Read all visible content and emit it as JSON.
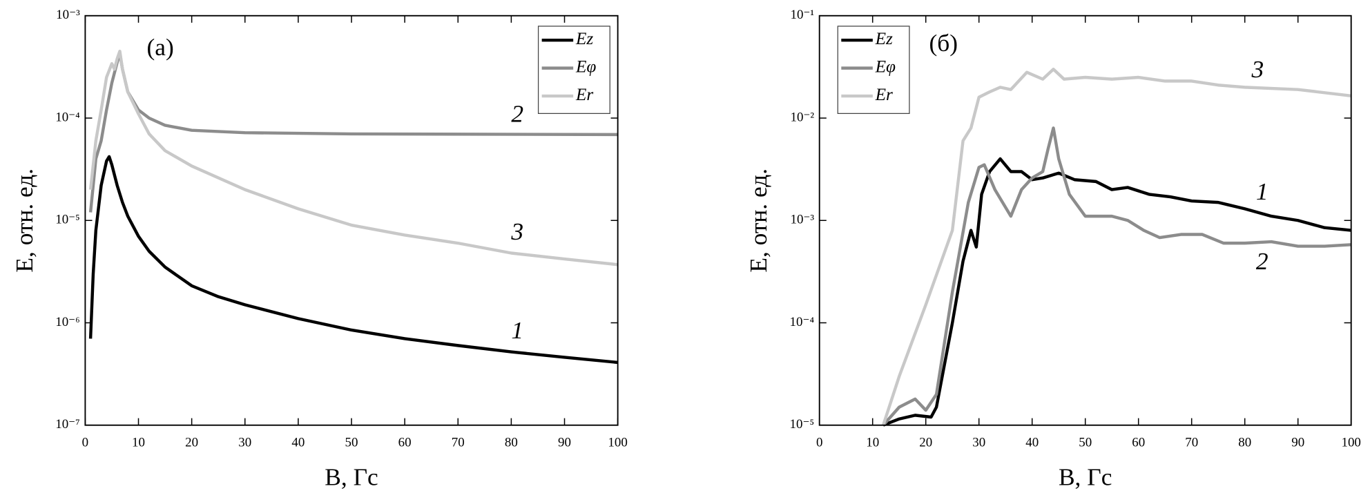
{
  "chart_data": [
    {
      "type": "line",
      "xlabel": "B, Гс",
      "ylabel": "E, отн. ед.",
      "log_y": true,
      "xlim": [
        0,
        100
      ],
      "ylim": [
        1e-07,
        0.001
      ],
      "xticks": [
        0,
        10,
        20,
        30,
        40,
        50,
        60,
        70,
        80,
        90,
        100
      ],
      "yticks": [
        {
          "value": 1e-07,
          "label": "10⁻⁷"
        },
        {
          "value": 1e-06,
          "label": "10⁻⁶"
        },
        {
          "value": 1e-05,
          "label": "10⁻⁵"
        },
        {
          "value": 0.0001,
          "label": "10⁻⁴"
        },
        {
          "value": 0.001,
          "label": "10⁻³"
        }
      ],
      "legend": "upper right",
      "annotations": [
        "(a)",
        "2",
        "3",
        "1"
      ],
      "series": [
        {
          "name": "Ez",
          "color": "#000000",
          "x": [
            1,
            1.5,
            2,
            3,
            4,
            4.5,
            5,
            6,
            7,
            8,
            10,
            12,
            15,
            20,
            25,
            30,
            40,
            50,
            60,
            70,
            80,
            90,
            100
          ],
          "values": [
            7e-07,
            3e-06,
            8e-06,
            2.2e-05,
            3.8e-05,
            4.2e-05,
            3.5e-05,
            2.2e-05,
            1.5e-05,
            1.1e-05,
            7e-06,
            5e-06,
            3.5e-06,
            2.3e-06,
            1.8e-06,
            1.5e-06,
            1.1e-06,
            8.5e-07,
            7e-07,
            6e-07,
            5.2e-07,
            4.6e-07,
            4.1e-07
          ]
        },
        {
          "name": "Eφ",
          "color": "#8c8c8c",
          "x": [
            1,
            2,
            3,
            4,
            5,
            6,
            6.5,
            7,
            8,
            10,
            12,
            15,
            20,
            30,
            50,
            100
          ],
          "values": [
            1.2e-05,
            4e-05,
            6e-05,
            0.00012,
            0.00022,
            0.00035,
            0.00043,
            0.0003,
            0.00018,
            0.00012,
            0.0001,
            8.5e-05,
            7.6e-05,
            7.2e-05,
            7e-05,
            6.9e-05
          ]
        },
        {
          "name": "Er",
          "color": "#c8c8c8",
          "x": [
            1,
            2,
            3,
            4,
            5,
            5.5,
            6,
            6.5,
            7,
            8,
            10,
            12,
            15,
            20,
            30,
            40,
            50,
            60,
            70,
            80,
            90,
            100
          ],
          "values": [
            2e-05,
            6e-05,
            0.00012,
            0.00025,
            0.00034,
            0.0003,
            0.00038,
            0.00045,
            0.0003,
            0.00018,
            0.00011,
            7e-05,
            4.8e-05,
            3.4e-05,
            2e-05,
            1.3e-05,
            9e-06,
            7.2e-06,
            6e-06,
            4.8e-06,
            4.2e-06,
            3.7e-06
          ]
        }
      ]
    },
    {
      "type": "line",
      "xlabel": "B, Гс",
      "ylabel": "E, отн. ед.",
      "log_y": true,
      "xlim": [
        0,
        100
      ],
      "ylim": [
        1e-05,
        0.1
      ],
      "xticks": [
        0,
        10,
        20,
        30,
        40,
        50,
        60,
        70,
        80,
        90,
        100
      ],
      "yticks": [
        {
          "value": 1e-05,
          "label": "10⁻⁵"
        },
        {
          "value": 0.0001,
          "label": "10⁻⁴"
        },
        {
          "value": 0.001,
          "label": "10⁻³"
        },
        {
          "value": 0.01,
          "label": "10⁻²"
        },
        {
          "value": 0.1,
          "label": "10⁻¹"
        }
      ],
      "legend": "upper left",
      "annotations": [
        "(б)",
        "3",
        "1",
        "2"
      ],
      "series": [
        {
          "name": "Ez",
          "color": "#000000",
          "x": [
            12,
            15,
            18,
            21,
            22,
            25,
            27,
            28.5,
            29.5,
            30.5,
            32,
            34,
            36,
            38,
            40,
            42,
            45,
            48,
            52,
            55,
            58,
            62,
            66,
            70,
            75,
            80,
            85,
            90,
            95,
            100
          ],
          "values": [
            1e-05,
            1.15e-05,
            1.25e-05,
            1.2e-05,
            1.5e-05,
            0.0001,
            0.0004,
            0.0008,
            0.00055,
            0.0018,
            0.003,
            0.004,
            0.003,
            0.003,
            0.0025,
            0.0026,
            0.0029,
            0.0025,
            0.0024,
            0.002,
            0.0021,
            0.0018,
            0.0017,
            0.00155,
            0.0015,
            0.0013,
            0.0011,
            0.001,
            0.00085,
            0.0008
          ]
        },
        {
          "name": "Eφ",
          "color": "#8c8c8c",
          "x": [
            12,
            15,
            18,
            20,
            22,
            25,
            28,
            30,
            31,
            33,
            36,
            38,
            40,
            42,
            43,
            44,
            45,
            47,
            50,
            55,
            58,
            61,
            64,
            68,
            72,
            76,
            80,
            85,
            90,
            95,
            100
          ],
          "values": [
            1e-05,
            1.5e-05,
            1.8e-05,
            1.4e-05,
            2e-05,
            0.0002,
            0.0015,
            0.0033,
            0.0035,
            0.002,
            0.0011,
            0.002,
            0.0026,
            0.003,
            0.005,
            0.008,
            0.004,
            0.0018,
            0.0011,
            0.0011,
            0.001,
            0.0008,
            0.00068,
            0.00073,
            0.00073,
            0.0006,
            0.0006,
            0.00062,
            0.00056,
            0.00056,
            0.00058
          ]
        },
        {
          "name": "Er",
          "color": "#c8c8c8",
          "x": [
            12,
            15,
            20,
            25,
            27,
            28.5,
            30,
            32,
            34,
            36,
            39,
            42,
            44,
            46,
            50,
            55,
            60,
            65,
            70,
            75,
            80,
            90,
            100
          ],
          "values": [
            1e-05,
            3e-05,
            0.00015,
            0.0008,
            0.006,
            0.008,
            0.016,
            0.018,
            0.02,
            0.019,
            0.028,
            0.024,
            0.03,
            0.024,
            0.025,
            0.024,
            0.025,
            0.023,
            0.023,
            0.021,
            0.02,
            0.019,
            0.0165
          ]
        }
      ]
    }
  ]
}
